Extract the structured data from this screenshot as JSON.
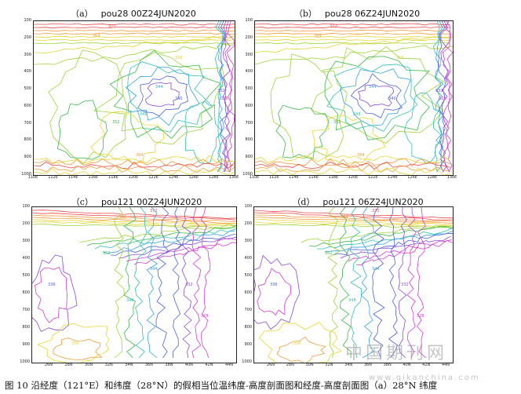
{
  "panels": [
    {
      "label": "（a）",
      "title": "pou28  00Z24JUN2020",
      "axis": "lon",
      "ticks_y": [
        "100",
        "200",
        "300",
        "400",
        "500",
        "600",
        "700",
        "800",
        "900",
        "1000"
      ],
      "ticks_x": [
        "110E",
        "112E",
        "114E",
        "116E",
        "118E",
        "120E",
        "122E",
        "124E",
        "126E",
        "128E",
        "130E"
      ]
    },
    {
      "label": "（b）",
      "title": "pou28  06Z24JUN2020",
      "axis": "lon",
      "ticks_y": [
        "100",
        "200",
        "300",
        "400",
        "500",
        "600",
        "700",
        "800",
        "900",
        "1000"
      ],
      "ticks_x": [
        "110E",
        "112E",
        "114E",
        "116E",
        "118E",
        "120E",
        "122E",
        "124E",
        "126E",
        "128E",
        "130E"
      ]
    },
    {
      "label": "（c）",
      "title": "pou121  00Z24JUN2020",
      "axis": "lat",
      "ticks_y": [
        "100",
        "200",
        "300",
        "400",
        "500",
        "600",
        "700",
        "800",
        "900",
        "1000"
      ],
      "ticks_x": [
        "26N",
        "28N",
        "30N",
        "32N",
        "34N",
        "36N",
        "38N",
        "40N",
        "42N",
        "44N"
      ]
    },
    {
      "label": "（d）",
      "title": "pou121  06Z24JUN2020",
      "axis": "lat",
      "ticks_y": [
        "100",
        "200",
        "300",
        "400",
        "500",
        "600",
        "700",
        "800",
        "900",
        "1000"
      ],
      "ticks_x": [
        "26N",
        "28N",
        "30N",
        "32N",
        "34N",
        "36N",
        "38N",
        "40N",
        "42N",
        "44N"
      ]
    }
  ],
  "contour_labels": [
    "372",
    "364",
    "356",
    "352",
    "348",
    "344",
    "340",
    "336",
    "332",
    "328"
  ],
  "caption": "图 10  沿经度（121°E）和纬度（28°N）的假相当位温纬度-高度剖面图和经度-高度剖面图（a）28°N 纬度",
  "watermark": {
    "cn": "中国期刊网",
    "url": "www.qikanchina.com"
  },
  "colors": {
    "c372": "#e8494a",
    "c364": "#f29a3b",
    "c356": "#e6d534",
    "c352": "#9fd33a",
    "c348": "#3cb94a",
    "c344": "#33c0b0",
    "c340": "#35a4e0",
    "c336": "#4a62d8",
    "c332": "#8a49d6",
    "c328": "#d23bd0"
  }
}
